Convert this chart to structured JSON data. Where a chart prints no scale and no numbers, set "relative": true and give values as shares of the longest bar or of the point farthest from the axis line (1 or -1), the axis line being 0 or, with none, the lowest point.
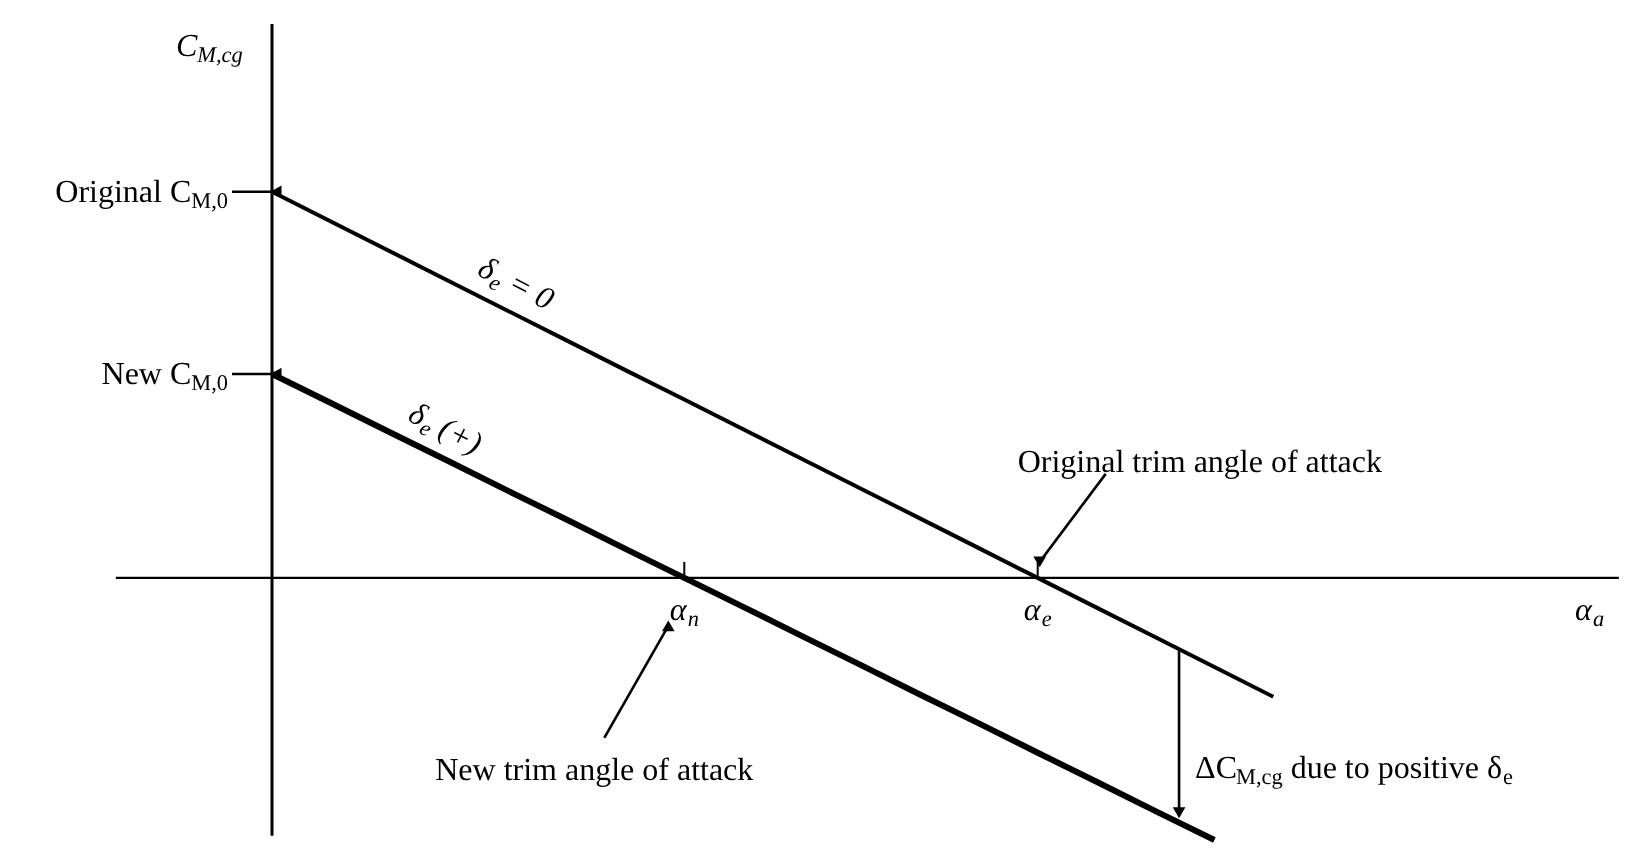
{
  "chart_data": {
    "type": "line",
    "relative": true,
    "ylabel": "C$_{M,cg}$",
    "categories": [
      null,
      null,
      null,
      null,
      null,
      null,
      null,
      "α$_{n}$",
      null,
      null,
      null,
      null,
      null,
      "α$_{e}$",
      null,
      null,
      null,
      null
    ],
    "series": [
      {
        "color": "#000000",
        "values": [
          1,
          0.923,
          0.846,
          0.769,
          0.692,
          0.615,
          0.538,
          0.462,
          0.385,
          0.308,
          0.231,
          0.154,
          0.077,
          0,
          -0.077,
          -0.154,
          -0.231,
          -0.308
        ]
      },
      {
        "color": "#000000",
        "values": [
          0.528,
          0.453,
          0.377,
          0.302,
          0.226,
          0.151,
          0.075,
          0,
          -0.075,
          -0.151,
          -0.226,
          -0.302,
          -0.377,
          -0.453,
          -0.528,
          -0.604,
          -0.679,
          null
        ]
      }
    ],
    "annotations": [
      "Original C$_{M,0}$",
      "New C$_{M,0}$",
      "δ$_{e}$ = 0",
      "δ$_{e}$ (+)",
      "Original trim angle of attack",
      "New trim angle of attack",
      "ΔC$_{M,cg}$ due to positive δ$_{e}$",
      "α$_{a}$"
    ],
    "marker": "none",
    "line_style": "solid"
  }
}
